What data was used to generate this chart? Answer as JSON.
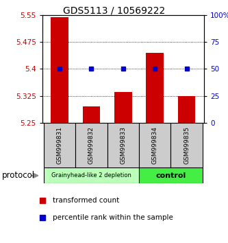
{
  "title": "GDS5113 / 10569222",
  "samples": [
    "GSM999831",
    "GSM999832",
    "GSM999833",
    "GSM999834",
    "GSM999835"
  ],
  "bar_values": [
    5.545,
    5.295,
    5.335,
    5.445,
    5.325
  ],
  "bar_bottom": 5.25,
  "ylim": [
    5.25,
    5.55
  ],
  "yticks_left": [
    5.25,
    5.325,
    5.4,
    5.475,
    5.55
  ],
  "ytick_labels_left": [
    "5.25",
    "5.325",
    "5.4",
    "5.475",
    "5.55"
  ],
  "yticks_right": [
    0,
    25,
    50,
    75,
    100
  ],
  "ytick_labels_right": [
    "0",
    "25",
    "50",
    "75",
    "100%"
  ],
  "bar_color": "#CC0000",
  "percentile_color": "#0000CC",
  "percentile_pct": 50,
  "group1_label": "Grainyhead-like 2 depletion",
  "group2_label": "control",
  "group1_color": "#bbffbb",
  "group2_color": "#44ee44",
  "protocol_label": "protocol",
  "legend_bar_label": "transformed count",
  "legend_pct_label": "percentile rank within the sample",
  "grid_yticks": [
    5.325,
    5.4,
    5.475
  ],
  "tick_color_left": "#CC0000",
  "tick_color_right": "#0000CC",
  "title_fontsize": 10,
  "tick_fontsize": 7.5,
  "sample_fontsize": 6.5,
  "legend_fontsize": 7.5
}
